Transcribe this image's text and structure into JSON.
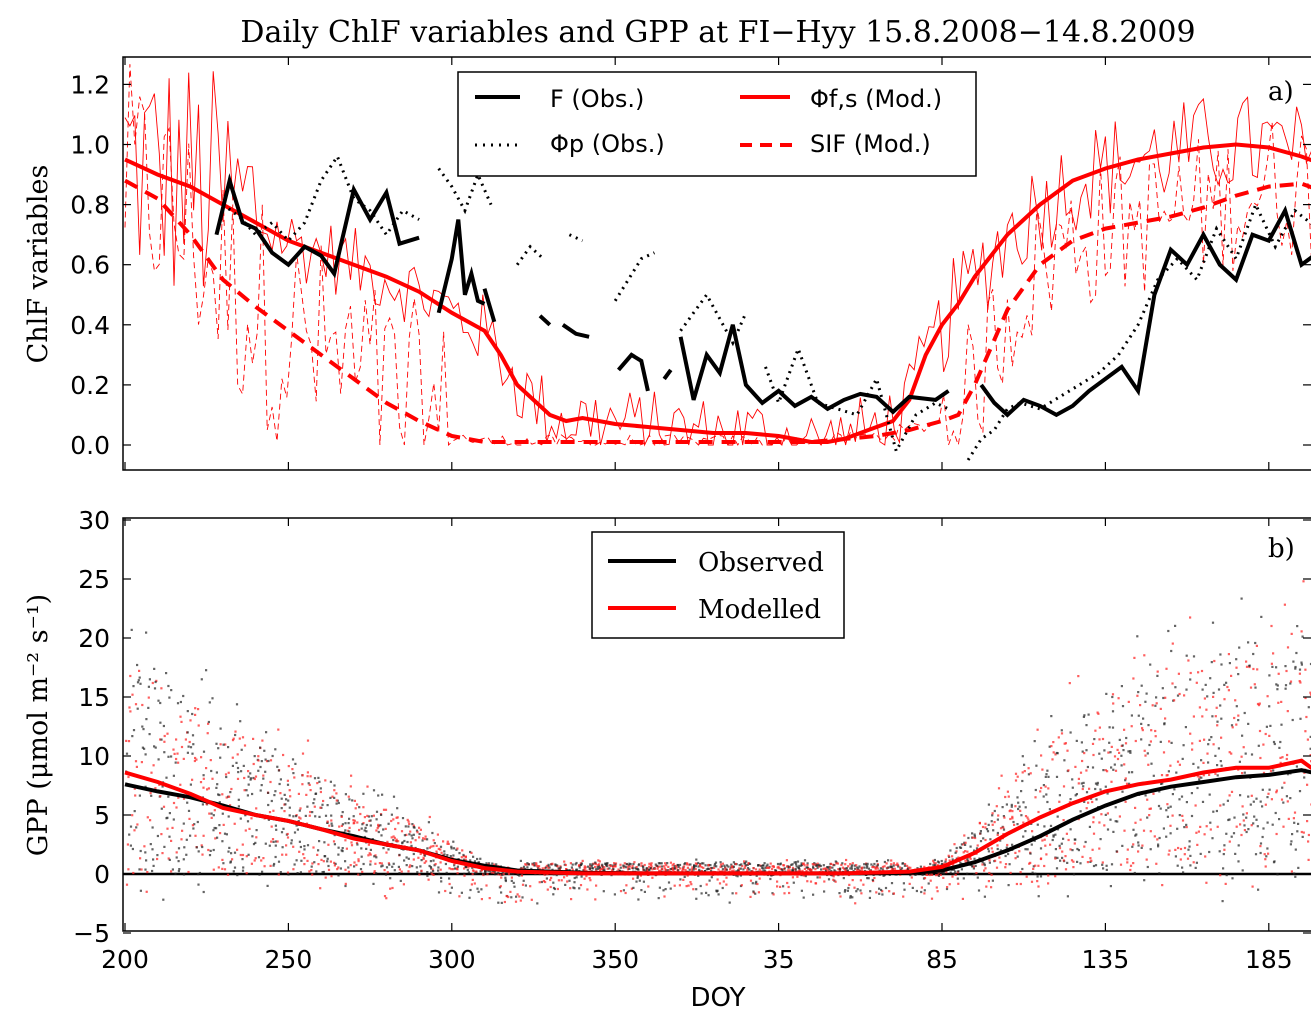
{
  "figure": {
    "title": "Daily ChlF variables and GPP at FI−Hyy 15.8.2008−14.8.2009",
    "xlabel": "DOY",
    "x_ticks": [
      "200",
      "250",
      "300",
      "350",
      "35",
      "85",
      "135",
      "185"
    ]
  },
  "chart_data": [
    {
      "type": "line",
      "panel_label": "a)",
      "ylabel": "ChlF variables",
      "ylim": [
        -0.1,
        1.3
      ],
      "xlim": [
        0,
        365
      ],
      "x_unit_note": "",
      "y_ticks": [
        "0.0",
        "0.2",
        "0.4",
        "0.6",
        "0.8",
        "1.0",
        "1.2"
      ],
      "legend_placement": "top-center",
      "colors": {
        "obs": "#000000",
        "mod": "#ff0000"
      },
      "legend": [
        {
          "label": "F (Obs.)",
          "style": "solid-thick",
          "color": "#000000"
        },
        {
          "label": "Φf,s (Mod.)",
          "style": "solid-thick",
          "color": "#ff0000"
        },
        {
          "label": "Φp (Obs.)",
          "style": "dotted",
          "color": "#000000"
        },
        {
          "label": "SIF (Mod.)",
          "style": "dashed-thick",
          "color": "#ff0000"
        }
      ],
      "series": [
        {
          "name": "Φf,s (Mod.)",
          "style": "solid-thick",
          "color": "#ff0000",
          "x": [
            0,
            10,
            20,
            30,
            40,
            50,
            60,
            70,
            80,
            90,
            100,
            110,
            115,
            120,
            125,
            130,
            135,
            140,
            150,
            160,
            170,
            180,
            190,
            200,
            210,
            215,
            220,
            225,
            230,
            235,
            240,
            245,
            250,
            255,
            260,
            270,
            280,
            290,
            300,
            310,
            320,
            330,
            340,
            350,
            360,
            365
          ],
          "y": [
            0.95,
            0.9,
            0.86,
            0.8,
            0.74,
            0.68,
            0.64,
            0.6,
            0.56,
            0.51,
            0.44,
            0.38,
            0.3,
            0.2,
            0.15,
            0.1,
            0.08,
            0.09,
            0.07,
            0.06,
            0.05,
            0.04,
            0.04,
            0.03,
            0.01,
            0.01,
            0.02,
            0.04,
            0.06,
            0.08,
            0.15,
            0.3,
            0.4,
            0.47,
            0.56,
            0.7,
            0.8,
            0.88,
            0.92,
            0.95,
            0.97,
            0.99,
            1.0,
            0.99,
            0.96,
            0.94
          ]
        },
        {
          "name": "SIF (Mod.)",
          "style": "dashed-thick",
          "color": "#ff0000",
          "x": [
            0,
            10,
            20,
            30,
            40,
            50,
            60,
            70,
            80,
            90,
            100,
            110,
            115,
            120,
            130,
            140,
            150,
            170,
            190,
            210,
            220,
            230,
            240,
            250,
            255,
            260,
            270,
            280,
            290,
            300,
            310,
            320,
            330,
            340,
            350,
            360,
            365
          ],
          "y": [
            0.88,
            0.82,
            0.7,
            0.55,
            0.46,
            0.38,
            0.3,
            0.22,
            0.14,
            0.08,
            0.03,
            0.01,
            0.01,
            0.01,
            0.01,
            0.01,
            0.01,
            0.01,
            0.01,
            0.01,
            0.02,
            0.03,
            0.05,
            0.08,
            0.1,
            0.2,
            0.45,
            0.6,
            0.68,
            0.72,
            0.74,
            0.76,
            0.79,
            0.83,
            0.86,
            0.87,
            0.85
          ]
        },
        {
          "name": "F (Obs.)",
          "style": "solid-thick",
          "color": "#000000",
          "segments": [
            {
              "x": [
                28,
                32,
                36,
                40,
                45,
                50,
                55,
                60,
                64,
                70,
                75,
                80,
                84,
                90
              ],
              "y": [
                0.7,
                0.88,
                0.74,
                0.72,
                0.64,
                0.6,
                0.66,
                0.63,
                0.57,
                0.85,
                0.75,
                0.84,
                0.67,
                0.69
              ]
            },
            {
              "x": [
                96,
                100,
                102,
                104,
                106,
                108,
                110
              ],
              "y": [
                0.44,
                0.62,
                0.75,
                0.5,
                0.57,
                0.48,
                0.47
              ]
            },
            {
              "x": [
                110,
                113
              ],
              "y": [
                0.52,
                0.41
              ]
            },
            {
              "x": [
                127,
                130
              ],
              "y": [
                0.43,
                0.4
              ]
            },
            {
              "x": [
                134,
                138,
                142
              ],
              "y": [
                0.4,
                0.37,
                0.36
              ]
            },
            {
              "x": [
                151,
                155,
                158,
                160
              ],
              "y": [
                0.25,
                0.3,
                0.28,
                0.18
              ]
            },
            {
              "x": [
                165,
                167
              ],
              "y": [
                0.22,
                0.25
              ]
            },
            {
              "x": [
                170,
                174,
                178,
                182,
                186,
                190,
                195,
                200,
                205,
                210,
                215,
                220,
                225,
                230,
                235,
                240,
                248,
                252
              ],
              "y": [
                0.36,
                0.15,
                0.3,
                0.24,
                0.4,
                0.2,
                0.14,
                0.18,
                0.13,
                0.16,
                0.12,
                0.15,
                0.17,
                0.16,
                0.11,
                0.16,
                0.15,
                0.18
              ]
            },
            {
              "x": [
                262,
                266,
                270,
                275,
                280,
                285,
                290,
                295,
                300,
                305,
                310,
                315,
                320,
                325,
                330,
                335,
                340,
                345,
                350,
                355,
                360,
                365
              ],
              "y": [
                0.2,
                0.14,
                0.1,
                0.15,
                0.13,
                0.1,
                0.13,
                0.18,
                0.22,
                0.26,
                0.18,
                0.5,
                0.65,
                0.6,
                0.7,
                0.6,
                0.55,
                0.7,
                0.68,
                0.78,
                0.6,
                0.64
              ]
            }
          ]
        },
        {
          "name": "Φp (Obs.)",
          "style": "dotted",
          "color": "#000000",
          "segments": [
            {
              "x": [
                30,
                35,
                40,
                45,
                50,
                55,
                60,
                65,
                70,
                75,
                80,
                85,
                90
              ],
              "y": [
                0.8,
                0.76,
                0.7,
                0.74,
                0.68,
                0.74,
                0.88,
                0.96,
                0.82,
                0.78,
                0.7,
                0.78,
                0.75
              ]
            },
            {
              "x": [
                96,
                100,
                104,
                108,
                112
              ],
              "y": [
                0.92,
                0.86,
                0.78,
                0.9,
                0.8
              ]
            },
            {
              "x": [
                120,
                124,
                128
              ],
              "y": [
                0.6,
                0.66,
                0.62
              ]
            },
            {
              "x": [
                136,
                140
              ],
              "y": [
                0.7,
                0.68
              ]
            },
            {
              "x": [
                150,
                154,
                158,
                162
              ],
              "y": [
                0.48,
                0.55,
                0.62,
                0.64
              ]
            },
            {
              "x": [
                170,
                174,
                178,
                182,
                186,
                190
              ],
              "y": [
                0.38,
                0.44,
                0.5,
                0.42,
                0.34,
                0.44
              ]
            },
            {
              "x": [
                196,
                200,
                206,
                212,
                218,
                224,
                230,
                236,
                242,
                248,
                252
              ],
              "y": [
                0.26,
                0.14,
                0.32,
                0.14,
                0.12,
                0.1,
                0.22,
                -0.02,
                0.1,
                0.14,
                0.12
              ]
            },
            {
              "x": [
                258,
                262,
                266,
                270,
                274,
                280,
                286,
                292,
                298,
                304,
                310,
                316,
                322,
                328,
                334,
                340,
                346,
                352,
                358,
                365
              ],
              "y": [
                -0.05,
                0.02,
                0.05,
                0.12,
                0.14,
                0.12,
                0.16,
                0.2,
                0.24,
                0.3,
                0.4,
                0.55,
                0.62,
                0.55,
                0.72,
                0.62,
                0.8,
                0.66,
                0.78,
                0.72
              ]
            }
          ]
        }
      ]
    },
    {
      "type": "scatter",
      "panel_label": "b)",
      "ylabel": "GPP (μmol m⁻² s⁻¹)",
      "ylim": [
        -5,
        30
      ],
      "xlim": [
        0,
        365
      ],
      "y_ticks": [
        "−5",
        "0",
        "5",
        "10",
        "15",
        "20",
        "25",
        "30"
      ],
      "legend_placement": "top-center",
      "legend": [
        {
          "label": "Observed",
          "color": "#000000"
        },
        {
          "label": "Modelled",
          "color": "#ff0000"
        }
      ],
      "series": [
        {
          "name": "Observed",
          "color": "#000000",
          "x": [
            0,
            10,
            20,
            30,
            40,
            50,
            60,
            70,
            80,
            90,
            100,
            110,
            120,
            140,
            160,
            180,
            200,
            220,
            240,
            250,
            260,
            270,
            280,
            290,
            300,
            310,
            320,
            330,
            340,
            350,
            360,
            365
          ],
          "y": [
            7.6,
            7.0,
            6.5,
            5.8,
            5.0,
            4.5,
            3.8,
            3.2,
            2.5,
            2.0,
            1.2,
            0.7,
            0.3,
            0.1,
            0.05,
            0.05,
            0.05,
            0.05,
            0.1,
            0.3,
            1.0,
            2.0,
            3.2,
            4.6,
            5.8,
            6.8,
            7.4,
            7.8,
            8.2,
            8.4,
            8.8,
            8.5
          ]
        },
        {
          "name": "Modelled",
          "color": "#ff0000",
          "x": [
            0,
            10,
            20,
            30,
            40,
            50,
            60,
            70,
            80,
            90,
            100,
            110,
            120,
            140,
            160,
            180,
            200,
            220,
            240,
            250,
            260,
            270,
            280,
            290,
            300,
            310,
            320,
            330,
            340,
            350,
            360,
            365
          ],
          "y": [
            8.6,
            7.8,
            6.8,
            5.6,
            5.0,
            4.5,
            3.8,
            3.0,
            2.5,
            2.0,
            1.1,
            0.5,
            0.2,
            0.05,
            0.05,
            0.05,
            0.05,
            0.05,
            0.2,
            0.6,
            1.8,
            3.4,
            4.8,
            6.0,
            7.0,
            7.6,
            8.0,
            8.6,
            9.0,
            9.0,
            9.6,
            8.6
          ]
        }
      ]
    }
  ]
}
